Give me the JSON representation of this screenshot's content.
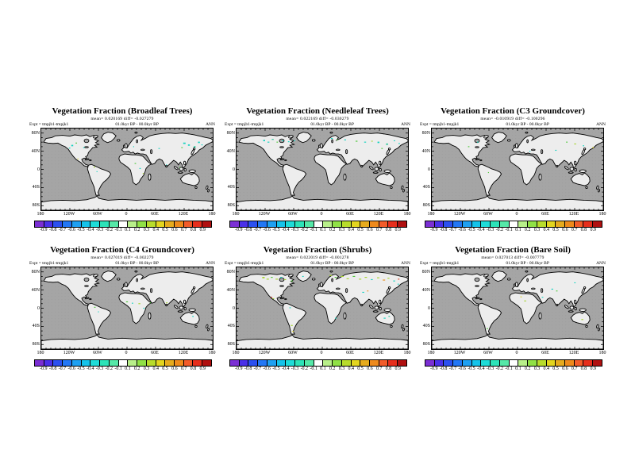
{
  "figure": {
    "background": "#ffffff",
    "experiment_label": "Expt = tmpjb1-tmpjk1",
    "period_label": "01.0kyr BP - 00.0kyr BP",
    "season_label": "ANN"
  },
  "map_colors": {
    "ocean": "#a5a5a5",
    "land": "#ededed",
    "coast": "#000000"
  },
  "chart_data": {
    "type": "heatmap",
    "subtype": "global-lat-lon-map-grid",
    "layout": "2 rows x 3 columns of world maps, each with its own horizontal colorbar",
    "shared": {
      "variable": "Vegetation Fraction difference (01.0kyr BP - 00.0kyr BP)",
      "experiment": "Expt = tmpjb1-tmpjk1",
      "season": "ANN",
      "period": "01.0kyr BP - 00.0kyr BP",
      "lon_ticks": [
        "180",
        "120W",
        "60W",
        "0",
        "60E",
        "120E",
        "180"
      ],
      "lat_ticks": [
        "80N",
        "40N",
        "0",
        "40S",
        "80S"
      ],
      "colorbar": {
        "min": -0.9,
        "max": 0.9,
        "interval": 0.1,
        "center_blank_range": [
          -0.1,
          0.1
        ],
        "labels": [
          "-0.9",
          "-0.8",
          "-0.7",
          "-0.6",
          "-0.5",
          "-0.4",
          "-0.3",
          "-0.2",
          "-0.1",
          "0.1",
          "0.2",
          "0.3",
          "0.4",
          "0.5",
          "0.6",
          "0.7",
          "0.8",
          "0.9"
        ],
        "colors": [
          "#7b2fd4",
          "#4a30e8",
          "#2b50f0",
          "#2277f5",
          "#1ea0f2",
          "#15c3ea",
          "#1edcd8",
          "#2ce3b8",
          "#55e8a8",
          "#ffffff",
          "#b8ef8a",
          "#90e146",
          "#b8dc2c",
          "#e3d51f",
          "#e6ab1e",
          "#ee8a1c",
          "#f25c2a",
          "#e62e1c",
          "#b01010"
        ]
      }
    },
    "panels": [
      {
        "title": "Vegetation Fraction (Broadleaf Trees)",
        "mean_label": "mean= 0.020169",
        "diff_label": "diff= -0.027279",
        "anomalies": [
          [
            63,
            36,
            4,
            3,
            "#17d3c0"
          ],
          [
            72,
            31,
            3,
            2,
            "#4ec83a"
          ],
          [
            88,
            41,
            3,
            2,
            "#17d3c0"
          ],
          [
            58,
            42,
            3,
            2,
            "#17d3c0"
          ],
          [
            76,
            66,
            2,
            2,
            "#ddd326"
          ],
          [
            110,
            84,
            3,
            2,
            "#a4d42c"
          ],
          [
            116,
            94,
            2,
            2,
            "#17d3c0"
          ],
          [
            196,
            76,
            3,
            2,
            "#4ec83a"
          ],
          [
            206,
            87,
            3,
            2,
            "#17d3c0"
          ],
          [
            213,
            98,
            2,
            2,
            "#a4d42c"
          ],
          [
            193,
            39,
            2,
            2,
            "#17d3c0"
          ],
          [
            298,
            31,
            5,
            3,
            "#17d3c0"
          ],
          [
            308,
            35,
            4,
            3,
            "#17d3c0"
          ],
          [
            320,
            39,
            4,
            3,
            "#25c795"
          ],
          [
            294,
            41,
            3,
            2,
            "#4ec83a"
          ],
          [
            329,
            29,
            4,
            3,
            "#17d3c0"
          ],
          [
            336,
            35,
            3,
            2,
            "#17d3c0"
          ],
          [
            262,
            79,
            2,
            2,
            "#17d3c0"
          ],
          [
            290,
            85,
            2,
            2,
            "#4ec83a"
          ],
          [
            246,
            43,
            3,
            2,
            "#17d3c0"
          ]
        ]
      },
      {
        "title": "Vegetation Fraction (Needleleaf Trees)",
        "mean_label": "mean= 0.022169",
        "diff_label": "diff= -0.030279",
        "anomalies": [
          [
            56,
            25,
            4,
            3,
            "#17d3c0"
          ],
          [
            65,
            29,
            4,
            2,
            "#17d3c0"
          ],
          [
            74,
            23,
            4,
            2,
            "#25c795"
          ],
          [
            84,
            29,
            3,
            2,
            "#4ec83a"
          ],
          [
            95,
            26,
            4,
            2,
            "#17d3c0"
          ],
          [
            108,
            28,
            3,
            2,
            "#17d3c0"
          ],
          [
            120,
            26,
            3,
            2,
            "#17d3c0"
          ],
          [
            198,
            21,
            4,
            2,
            "#17d3c0"
          ],
          [
            210,
            24,
            3,
            2,
            "#4ec83a"
          ],
          [
            226,
            24,
            4,
            2,
            "#17d3c0"
          ],
          [
            250,
            27,
            4,
            2,
            "#4ec83a"
          ],
          [
            268,
            29,
            4,
            2,
            "#17d3c0"
          ],
          [
            283,
            27,
            3,
            2,
            "#a4d42c"
          ],
          [
            296,
            29,
            4,
            3,
            "#17d3c0"
          ],
          [
            314,
            33,
            4,
            3,
            "#25c795"
          ],
          [
            330,
            26,
            3,
            2,
            "#17d3c0"
          ],
          [
            340,
            32,
            3,
            2,
            "#17d3c0"
          ],
          [
            304,
            43,
            3,
            2,
            "#4ec83a"
          ]
        ]
      },
      {
        "title": "Vegetation Fraction (C3 Groundcover)",
        "mean_label": "mean= -0.010919",
        "diff_label": "diff= -0.100296",
        "anomalies": [
          [
            95,
            29,
            3,
            2,
            "#17d3c0"
          ],
          [
            76,
            39,
            3,
            2,
            "#4ec83a"
          ],
          [
            282,
            29,
            3,
            2,
            "#4ec83a"
          ],
          [
            299,
            33,
            4,
            2,
            "#a4d42c"
          ],
          [
            317,
            37,
            3,
            2,
            "#17d3c0"
          ],
          [
            337,
            41,
            3,
            2,
            "#ddd326"
          ],
          [
            205,
            49,
            2,
            2,
            "#17d3c0"
          ],
          [
            259,
            47,
            3,
            2,
            "#17d3c0"
          ],
          [
            118,
            96,
            2,
            2,
            "#4ec83a"
          ]
        ]
      },
      {
        "title": "Vegetation Fraction (C4 Groundcover)",
        "mean_label": "mean= 0.027019",
        "diff_label": "diff= -0.002279",
        "anomalies": [
          [
            178,
            75,
            4,
            2,
            "#4ec83a"
          ],
          [
            190,
            78,
            3,
            2,
            "#17d3c0"
          ],
          [
            204,
            79,
            4,
            2,
            "#a4d42c"
          ],
          [
            214,
            89,
            3,
            2,
            "#17d3c0"
          ],
          [
            111,
            87,
            3,
            2,
            "#4ec83a"
          ],
          [
            119,
            97,
            2,
            2,
            "#17d3c0"
          ],
          [
            262,
            77,
            3,
            2,
            "#a4d42c"
          ],
          [
            317,
            107,
            3,
            2,
            "#17d3c0"
          ],
          [
            228,
            77,
            2,
            2,
            "#4ec83a"
          ]
        ]
      },
      {
        "title": "Vegetation Fraction (Shrubs)",
        "mean_label": "mean= 0.022019",
        "diff_label": "diff= -0.001278",
        "anomalies": [
          [
            54,
            21,
            5,
            3,
            "#a4d42c"
          ],
          [
            63,
            25,
            5,
            2,
            "#a4d42c"
          ],
          [
            72,
            21,
            4,
            2,
            "#4ec83a"
          ],
          [
            82,
            25,
            5,
            2,
            "#a4d42c"
          ],
          [
            92,
            21,
            4,
            2,
            "#17d3c0"
          ],
          [
            100,
            26,
            4,
            2,
            "#a4d42c"
          ],
          [
            114,
            29,
            4,
            2,
            "#4ec83a"
          ],
          [
            138,
            19,
            3,
            2,
            "#17d3c0"
          ],
          [
            195,
            17,
            5,
            2,
            "#a4d42c"
          ],
          [
            206,
            21,
            4,
            2,
            "#4ec83a"
          ],
          [
            219,
            19,
            6,
            2,
            "#a4d42c"
          ],
          [
            231,
            24,
            5,
            2,
            "#a4d42c"
          ],
          [
            244,
            19,
            5,
            2,
            "#4ec83a"
          ],
          [
            257,
            25,
            5,
            2,
            "#a4d42c"
          ],
          [
            269,
            21,
            5,
            2,
            "#a4d42c"
          ],
          [
            282,
            26,
            4,
            2,
            "#17d3c0"
          ],
          [
            295,
            22,
            5,
            2,
            "#a4d42c"
          ],
          [
            307,
            27,
            5,
            2,
            "#e88f1e"
          ],
          [
            317,
            23,
            4,
            2,
            "#a4d42c"
          ],
          [
            329,
            29,
            4,
            2,
            "#17d3c0"
          ],
          [
            339,
            25,
            3,
            2,
            "#d8381c"
          ],
          [
            264,
            54,
            4,
            2,
            "#17d3c0"
          ],
          [
            274,
            51,
            3,
            2,
            "#e88f1e"
          ],
          [
            338,
            36,
            3,
            2,
            "#17d3c0"
          ],
          [
            111,
            88,
            3,
            2,
            "#17d3c0"
          ],
          [
            114,
            127,
            4,
            2,
            "#a4d42c"
          ],
          [
            117,
            140,
            3,
            2,
            "#ddd326"
          ],
          [
            207,
            111,
            3,
            2,
            "#17d3c0"
          ],
          [
            309,
            111,
            4,
            2,
            "#17d3c0"
          ],
          [
            319,
            107,
            3,
            2,
            "#25c795"
          ],
          [
            72,
            65,
            3,
            2,
            "#d8381c"
          ],
          [
            76,
            68,
            3,
            2,
            "#a4d42c"
          ]
        ]
      },
      {
        "title": "Vegetation Fraction (Bare Soil)",
        "mean_label": "mean= 0.027013",
        "diff_label": "diff= -0.007779",
        "anomalies": [
          [
            251,
            47,
            4,
            2,
            "#17d3c0"
          ],
          [
            261,
            51,
            3,
            2,
            "#4ec83a"
          ],
          [
            194,
            73,
            4,
            2,
            "#a4d42c"
          ],
          [
            299,
            33,
            3,
            2,
            "#17d3c0"
          ],
          [
            314,
            114,
            4,
            2,
            "#a4d42c"
          ],
          [
            231,
            65,
            3,
            2,
            "#17d3c0"
          ],
          [
            115,
            134,
            3,
            2,
            "#4ec83a"
          ],
          [
            186,
            64,
            3,
            2,
            "#ddd326"
          ]
        ]
      }
    ]
  }
}
